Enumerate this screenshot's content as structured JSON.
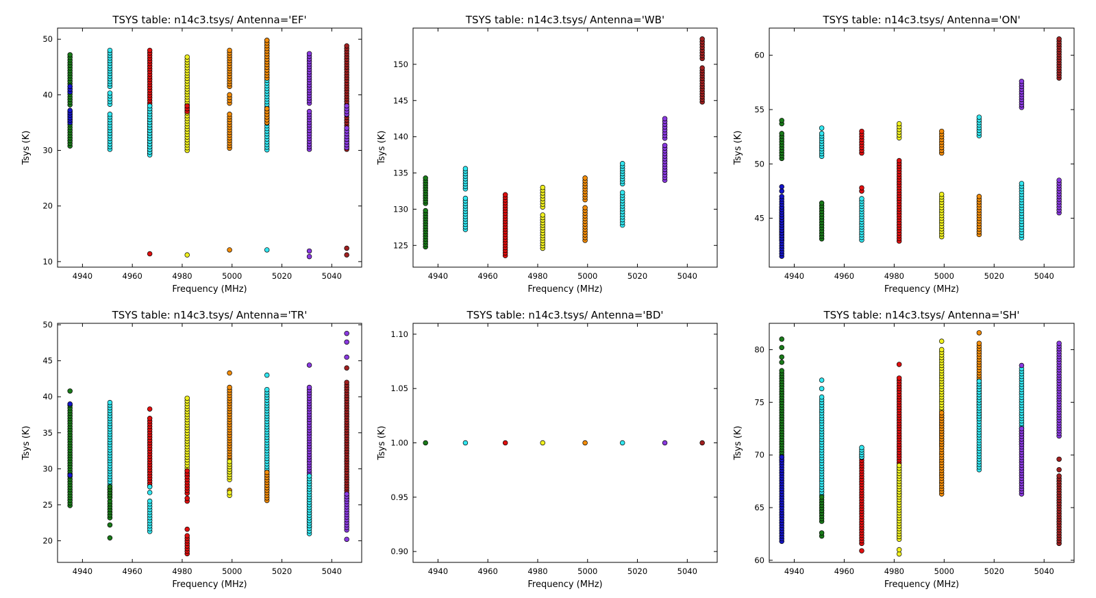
{
  "figure": {
    "background": "#ffffff"
  },
  "chart_data": [
    {
      "type": "scatter",
      "title": "TSYS table: n14c3.tsys/      Antenna='EF'",
      "xlabel": "Frequency (MHz)",
      "ylabel": "Tsys (K)",
      "xlim": [
        4930,
        5052
      ],
      "ylim": [
        9,
        52
      ],
      "xticks": [
        4940,
        4960,
        4980,
        5000,
        5020,
        5040
      ],
      "yticks": [
        10,
        20,
        30,
        40,
        50
      ],
      "series": [
        {
          "x": 4935,
          "color": "#1a7a1a",
          "segments": [
            [
              30.8,
              37
            ],
            [
              38.2,
              47.2
            ]
          ]
        },
        {
          "x": 4935,
          "color": "#1515c8",
          "segments": [
            [
              35,
              37.2
            ],
            [
              40.5,
              41.5
            ]
          ]
        },
        {
          "x": 4951,
          "color": "#33e6f0",
          "segments": [
            [
              30.2,
              36.5
            ],
            [
              38.3,
              40.3
            ],
            [
              41.5,
              48
            ]
          ]
        },
        {
          "x": 4967,
          "color": "#e01010",
          "segments": [
            [
              29.5,
              48
            ]
          ],
          "points": [
            11.4
          ]
        },
        {
          "x": 4967,
          "color": "#33e6f0",
          "segments": [
            [
              29.2,
              38
            ]
          ]
        },
        {
          "x": 4982,
          "color": "#f0f020",
          "segments": [
            [
              30,
              46.8
            ]
          ],
          "points": [
            11.2
          ]
        },
        {
          "x": 4982,
          "color": "#e01010",
          "segments": [
            [
              37,
              38
            ]
          ]
        },
        {
          "x": 4999,
          "color": "#f28c0a",
          "segments": [
            [
              30.4,
              36.5
            ],
            [
              38.5,
              40
            ],
            [
              41.5,
              48
            ]
          ],
          "points": [
            12.1
          ]
        },
        {
          "x": 5014,
          "color": "#33e6f0",
          "segments": [
            [
              30.1,
              49.8
            ]
          ],
          "points": [
            12.1
          ]
        },
        {
          "x": 5014,
          "color": "#f28c0a",
          "segments": [
            [
              35,
              37.5
            ],
            [
              43,
              49.8
            ]
          ]
        },
        {
          "x": 5031,
          "color": "#8a3ae0",
          "segments": [
            [
              30.2,
              37
            ],
            [
              38.5,
              47.4
            ]
          ],
          "points": [
            11.9,
            10.9
          ]
        },
        {
          "x": 5046,
          "color": "#a02020",
          "segments": [
            [
              30.2,
              48.8
            ]
          ],
          "points": [
            12.4,
            11.2
          ]
        },
        {
          "x": 5046,
          "color": "#8a3ae0",
          "segments": [
            [
              30.5,
              34
            ],
            [
              36.5,
              38
            ]
          ]
        }
      ]
    },
    {
      "type": "scatter",
      "title": "TSYS table: n14c3.tsys/      Antenna='WB'",
      "xlabel": "Frequency (MHz)",
      "ylabel": "Tsys (K)",
      "xlim": [
        4930,
        5052
      ],
      "ylim": [
        122,
        155
      ],
      "xticks": [
        4940,
        4960,
        4980,
        5000,
        5020,
        5040
      ],
      "yticks": [
        125,
        130,
        135,
        140,
        145,
        150
      ],
      "series": [
        {
          "x": 4935,
          "color": "#1a7a1a",
          "segments": [
            [
              124.8,
              129.8
            ],
            [
              130.8,
              134.3
            ]
          ]
        },
        {
          "x": 4951,
          "color": "#33e6f0",
          "segments": [
            [
              127.2,
              131.5
            ],
            [
              132.8,
              135.6
            ]
          ]
        },
        {
          "x": 4967,
          "color": "#e01010",
          "segments": [
            [
              123.6,
              132
            ]
          ]
        },
        {
          "x": 4982,
          "color": "#f0f020",
          "segments": [
            [
              124.6,
              129.2
            ],
            [
              130.3,
              133
            ]
          ]
        },
        {
          "x": 4999,
          "color": "#f28c0a",
          "segments": [
            [
              125.7,
              130.2
            ],
            [
              131.3,
              134.3
            ]
          ]
        },
        {
          "x": 5014,
          "color": "#33e6f0",
          "segments": [
            [
              127.8,
              132.3
            ],
            [
              133.5,
              136.3
            ]
          ]
        },
        {
          "x": 5031,
          "color": "#8a3ae0",
          "segments": [
            [
              134,
              138.8
            ],
            [
              139.8,
              142.5
            ]
          ]
        },
        {
          "x": 5046,
          "color": "#a02020",
          "segments": [
            [
              144.8,
              149.5
            ],
            [
              150.8,
              153.5
            ]
          ]
        }
      ]
    },
    {
      "type": "scatter",
      "title": "TSYS table: n14c3.tsys/      Antenna='ON'",
      "xlabel": "Frequency (MHz)",
      "ylabel": "Tsys (K)",
      "xlim": [
        4930,
        5052
      ],
      "ylim": [
        40.5,
        62.5
      ],
      "xticks": [
        4940,
        4960,
        4980,
        5000,
        5020,
        5040
      ],
      "yticks": [
        45,
        50,
        55,
        60
      ],
      "series": [
        {
          "x": 4935,
          "color": "#1a7a1a",
          "segments": [
            [
              50.5,
              52.8
            ],
            [
              43,
              46
            ]
          ],
          "points": [
            53.7,
            54
          ]
        },
        {
          "x": 4935,
          "color": "#1515c8",
          "segments": [
            [
              41.5,
              47
            ]
          ],
          "points": [
            47.5,
            47.9
          ]
        },
        {
          "x": 4951,
          "color": "#33e6f0",
          "segments": [
            [
              50.7,
              52.8
            ]
          ],
          "points": [
            53.3
          ]
        },
        {
          "x": 4951,
          "color": "#1a7a1a",
          "segments": [
            [
              43.1,
              46.4
            ]
          ]
        },
        {
          "x": 4967,
          "color": "#e01010",
          "segments": [
            [
              51,
              53
            ]
          ],
          "points": [
            47.5,
            47.8
          ]
        },
        {
          "x": 4967,
          "color": "#33e6f0",
          "segments": [
            [
              43,
              46.8
            ]
          ]
        },
        {
          "x": 4982,
          "color": "#f0f020",
          "segments": [
            [
              52.4,
              53.7
            ]
          ]
        },
        {
          "x": 4982,
          "color": "#e01010",
          "segments": [
            [
              42.9,
              50.3
            ]
          ]
        },
        {
          "x": 4999,
          "color": "#f28c0a",
          "segments": [
            [
              51,
              53
            ]
          ]
        },
        {
          "x": 4999,
          "color": "#f0f020",
          "segments": [
            [
              43.3,
              47.2
            ]
          ]
        },
        {
          "x": 5014,
          "color": "#33e6f0",
          "segments": [
            [
              52.6,
              54.3
            ]
          ]
        },
        {
          "x": 5014,
          "color": "#f28c0a",
          "segments": [
            [
              43.5,
              47
            ]
          ]
        },
        {
          "x": 5031,
          "color": "#8a3ae0",
          "segments": [
            [
              55.2,
              57.6
            ]
          ]
        },
        {
          "x": 5031,
          "color": "#33e6f0",
          "segments": [
            [
              43.2,
              48.2
            ]
          ]
        },
        {
          "x": 5046,
          "color": "#a02020",
          "segments": [
            [
              57.9,
              61.5
            ]
          ]
        },
        {
          "x": 5046,
          "color": "#8a3ae0",
          "segments": [
            [
              45.5,
              48.5
            ]
          ]
        }
      ]
    },
    {
      "type": "scatter",
      "title": "TSYS table: n14c3.tsys/      Antenna='TR'",
      "xlabel": "Frequency (MHz)",
      "ylabel": "Tsys (K)",
      "xlim": [
        4930,
        5052
      ],
      "ylim": [
        17,
        50.2
      ],
      "xticks": [
        4940,
        4960,
        4980,
        5000,
        5020,
        5040
      ],
      "yticks": [
        20,
        25,
        30,
        35,
        40,
        45,
        50
      ],
      "series": [
        {
          "x": 4935,
          "color": "#1a7a1a",
          "segments": [
            [
              24.9,
              38.8
            ]
          ],
          "points": [
            40.8
          ]
        },
        {
          "x": 4935,
          "color": "#1515c8",
          "points": [
            39,
            29.1
          ]
        },
        {
          "x": 4951,
          "color": "#33e6f0",
          "segments": [
            [
              26,
              39.2
            ]
          ]
        },
        {
          "x": 4951,
          "color": "#1a7a1a",
          "segments": [
            [
              23.2,
              25.5
            ],
            [
              26,
              27.5
            ]
          ],
          "points": [
            22.2,
            20.4
          ]
        },
        {
          "x": 4967,
          "color": "#e01010",
          "segments": [
            [
              27.6,
              37
            ]
          ],
          "points": [
            38.3
          ]
        },
        {
          "x": 4967,
          "color": "#33e6f0",
          "segments": [
            [
              21.3,
              25.5
            ]
          ],
          "points": [
            26.7,
            27.5
          ]
        },
        {
          "x": 4982,
          "color": "#f0f020",
          "segments": [
            [
              29,
              39.8
            ]
          ]
        },
        {
          "x": 4982,
          "color": "#e01010",
          "segments": [
            [
              26.6,
              29.7
            ],
            [
              18.2,
              20.7
            ]
          ],
          "points": [
            25.5,
            25.9,
            21.6
          ]
        },
        {
          "x": 4999,
          "color": "#f28c0a",
          "segments": [
            [
              29.5,
              41.3
            ]
          ],
          "points": [
            43.3,
            27
          ]
        },
        {
          "x": 4999,
          "color": "#f0f020",
          "segments": [
            [
              28.5,
              31
            ]
          ],
          "points": [
            26.3,
            26.7
          ]
        },
        {
          "x": 5014,
          "color": "#33e6f0",
          "segments": [
            [
              27,
              41
            ]
          ],
          "points": [
            43
          ]
        },
        {
          "x": 5014,
          "color": "#f28c0a",
          "segments": [
            [
              25.6,
              29.5
            ]
          ]
        },
        {
          "x": 5031,
          "color": "#8a3ae0",
          "segments": [
            [
              22,
              41.3
            ]
          ],
          "points": [
            44.4
          ]
        },
        {
          "x": 5031,
          "color": "#33e6f0",
          "segments": [
            [
              21,
              29
            ]
          ]
        },
        {
          "x": 5046,
          "color": "#a02020",
          "segments": [
            [
              25.5,
              42
            ]
          ],
          "points": [
            44
          ]
        },
        {
          "x": 5046,
          "color": "#8a3ae0",
          "segments": [
            [
              21.5,
              26.5
            ]
          ],
          "points": [
            48.8,
            47.6,
            45.5,
            20.2
          ]
        }
      ]
    },
    {
      "type": "scatter",
      "title": "TSYS table: n14c3.tsys/      Antenna='BD'",
      "xlabel": "Frequency (MHz)",
      "ylabel": "Tsys (K)",
      "xlim": [
        4930,
        5052
      ],
      "ylim": [
        0.89,
        1.11
      ],
      "xticks": [
        4940,
        4960,
        4980,
        5000,
        5020,
        5040
      ],
      "yticks": [
        0.9,
        0.95,
        1.0,
        1.05,
        1.1
      ],
      "ytick_labels": [
        "0.90",
        "0.95",
        "1.00",
        "1.05",
        "1.10"
      ],
      "series": [
        {
          "x": 4935,
          "color": "#1a7a1a",
          "points": [
            1.0
          ]
        },
        {
          "x": 4951,
          "color": "#33e6f0",
          "points": [
            1.0
          ]
        },
        {
          "x": 4967,
          "color": "#e01010",
          "points": [
            1.0
          ]
        },
        {
          "x": 4982,
          "color": "#f0f020",
          "points": [
            1.0
          ]
        },
        {
          "x": 4999,
          "color": "#f28c0a",
          "points": [
            1.0
          ]
        },
        {
          "x": 5014,
          "color": "#33e6f0",
          "points": [
            1.0
          ]
        },
        {
          "x": 5031,
          "color": "#8a3ae0",
          "points": [
            1.0
          ]
        },
        {
          "x": 5046,
          "color": "#a02020",
          "points": [
            1.0
          ]
        }
      ]
    },
    {
      "type": "scatter",
      "title": "TSYS table: n14c3.tsys/      Antenna='SH'",
      "xlabel": "Frequency (MHz)",
      "ylabel": "Tsys (K)",
      "xlim": [
        4930,
        5052
      ],
      "ylim": [
        59.8,
        82.5
      ],
      "xticks": [
        4940,
        4960,
        4980,
        5000,
        5020,
        5040
      ],
      "yticks": [
        60,
        65,
        70,
        75,
        80
      ],
      "series": [
        {
          "x": 4935,
          "color": "#1a7a1a",
          "segments": [
            [
              69.5,
              78
            ]
          ],
          "points": [
            81,
            80.2,
            79.3,
            78.8
          ]
        },
        {
          "x": 4935,
          "color": "#1515c8",
          "segments": [
            [
              61.8,
              69.8
            ]
          ]
        },
        {
          "x": 4951,
          "color": "#33e6f0",
          "segments": [
            [
              66.2,
              75.5
            ]
          ],
          "points": [
            76.3,
            77.1
          ]
        },
        {
          "x": 4951,
          "color": "#1a7a1a",
          "segments": [
            [
              63.7,
              66
            ]
          ],
          "points": [
            62.3,
            62.6
          ]
        },
        {
          "x": 4967,
          "color": "#e01010",
          "segments": [
            [
              61.6,
              70
            ]
          ],
          "points": [
            60.9
          ]
        },
        {
          "x": 4967,
          "color": "#33e6f0",
          "segments": [
            [
              69.8,
              70.7
            ]
          ]
        },
        {
          "x": 4982,
          "color": "#e01010",
          "segments": [
            [
              66,
              77.3
            ]
          ],
          "points": [
            78.6
          ]
        },
        {
          "x": 4982,
          "color": "#f0f020",
          "segments": [
            [
              62,
              69
            ]
          ],
          "points": [
            60.6,
            61
          ]
        },
        {
          "x": 4999,
          "color": "#f0f020",
          "segments": [
            [
              71,
              80
            ]
          ],
          "points": [
            80.8
          ]
        },
        {
          "x": 4999,
          "color": "#f28c0a",
          "segments": [
            [
              66.3,
              74
            ]
          ]
        },
        {
          "x": 5014,
          "color": "#f28c0a",
          "segments": [
            [
              73.5,
              80.6
            ]
          ],
          "points": [
            81.6
          ]
        },
        {
          "x": 5014,
          "color": "#33e6f0",
          "segments": [
            [
              68.6,
              77
            ]
          ]
        },
        {
          "x": 5031,
          "color": "#33e6f0",
          "segments": [
            [
              71,
              78.2
            ]
          ]
        },
        {
          "x": 5031,
          "color": "#8a3ae0",
          "segments": [
            [
              66.3,
              72.5
            ]
          ],
          "points": [
            78.5
          ]
        },
        {
          "x": 5046,
          "color": "#8a3ae0",
          "segments": [
            [
              71.8,
              80.6
            ]
          ]
        },
        {
          "x": 5046,
          "color": "#a02020",
          "segments": [
            [
              61.6,
              68
            ]
          ],
          "points": [
            69.6,
            68.6
          ]
        }
      ]
    }
  ]
}
